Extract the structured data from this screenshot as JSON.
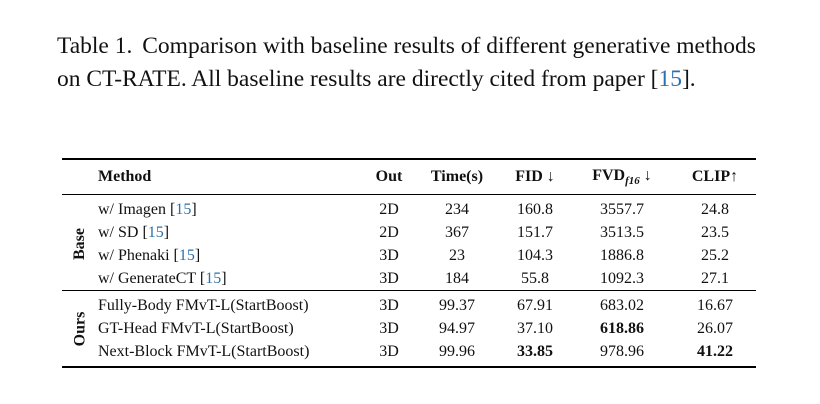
{
  "caption": {
    "label": "Table 1.",
    "text_before": "Comparison with baseline results of different generative methods on CT-RATE. All baseline results are directly cited from paper [",
    "cite": "15",
    "text_after": "]."
  },
  "table": {
    "headers": {
      "method": "Method",
      "out": "Out",
      "time": "Time(s)",
      "fid": "FID ↓",
      "fvd_main": "FVD",
      "fvd_sub": "f16",
      "fvd_arrow": " ↓",
      "clip": "CLIP↑"
    },
    "groups": [
      {
        "label": "Base",
        "rows": [
          {
            "method": "w/ Imagen [",
            "cite": "15",
            "close": "]",
            "out": "2D",
            "time": "234",
            "fid": "160.8",
            "fvd": "3557.7",
            "clip": "24.8"
          },
          {
            "method": "w/ SD [",
            "cite": "15",
            "close": "]",
            "out": "2D",
            "time": "367",
            "fid": "151.7",
            "fvd": "3513.5",
            "clip": "23.5"
          },
          {
            "method": "w/ Phenaki [",
            "cite": "15",
            "close": "]",
            "out": "3D",
            "time": "23",
            "fid": "104.3",
            "fvd": "1886.8",
            "clip": "25.2"
          },
          {
            "method": "w/ GenerateCT [",
            "cite": "15",
            "close": "]",
            "out": "3D",
            "time": "184",
            "fid": "55.8",
            "fvd": "1092.3",
            "clip": "27.1"
          }
        ]
      },
      {
        "label": "Ours",
        "rows": [
          {
            "method": "Fully-Body FMvT-L(StartBoost)",
            "out": "3D",
            "time": "99.37",
            "fid": "67.91",
            "fvd": "683.02",
            "clip": "16.67"
          },
          {
            "method": "GT-Head FMvT-L(StartBoost)",
            "out": "3D",
            "time": "94.97",
            "fid": "37.10",
            "fvd": "618.86",
            "clip": "26.07"
          },
          {
            "method": "Next-Block FMvT-L(StartBoost)",
            "out": "3D",
            "time": "99.96",
            "fid": "33.85",
            "fvd": "978.96",
            "clip": "41.22"
          }
        ]
      }
    ]
  }
}
